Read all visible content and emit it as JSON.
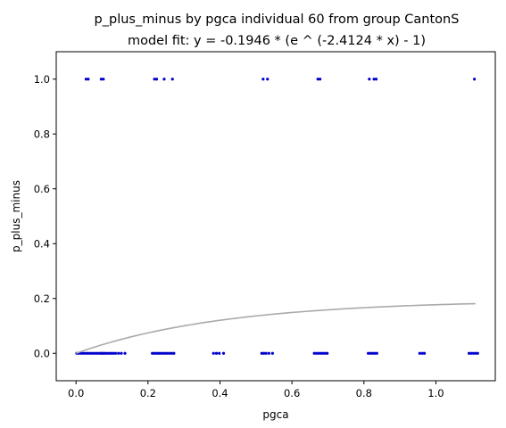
{
  "chart_data": {
    "type": "scatter",
    "title": "p_plus_minus by pgca individual 60 from group CantonS",
    "subtitle": "model fit: y = -0.1946 * (e ^ (-2.4124 * x) - 1)",
    "xlabel": "pgca",
    "ylabel": "p_plus_minus",
    "xlim": [
      -0.055,
      1.165
    ],
    "ylim": [
      -0.1,
      1.1
    ],
    "xticks": [
      0.0,
      0.2,
      0.4,
      0.6,
      0.8,
      1.0
    ],
    "xtick_labels": [
      "0.0",
      "0.2",
      "0.4",
      "0.6",
      "0.8",
      "1.0"
    ],
    "yticks": [
      0.0,
      0.2,
      0.4,
      0.6,
      0.8,
      1.0
    ],
    "ytick_labels": [
      "0.0",
      "0.2",
      "0.4",
      "0.6",
      "0.8",
      "1.0"
    ],
    "grid": false,
    "series": [
      {
        "kind": "scatter",
        "color": "#0000cc",
        "points": [
          [
            0.028,
            1
          ],
          [
            0.034,
            1
          ],
          [
            0.07,
            1
          ],
          [
            0.076,
            1
          ],
          [
            0.218,
            1
          ],
          [
            0.224,
            1
          ],
          [
            0.245,
            1
          ],
          [
            0.268,
            1
          ],
          [
            0.52,
            1
          ],
          [
            0.532,
            1
          ],
          [
            0.672,
            1
          ],
          [
            0.678,
            1
          ],
          [
            0.815,
            1
          ],
          [
            0.828,
            1
          ],
          [
            0.834,
            1
          ],
          [
            1.107,
            1
          ],
          [
            0.002,
            0
          ],
          [
            0.008,
            0
          ],
          [
            0.014,
            0
          ],
          [
            0.02,
            0
          ],
          [
            0.026,
            0
          ],
          [
            0.032,
            0
          ],
          [
            0.038,
            0
          ],
          [
            0.044,
            0
          ],
          [
            0.05,
            0
          ],
          [
            0.056,
            0
          ],
          [
            0.062,
            0
          ],
          [
            0.068,
            0
          ],
          [
            0.072,
            0
          ],
          [
            0.076,
            0
          ],
          [
            0.08,
            0
          ],
          [
            0.086,
            0
          ],
          [
            0.092,
            0
          ],
          [
            0.098,
            0
          ],
          [
            0.104,
            0
          ],
          [
            0.11,
            0
          ],
          [
            0.118,
            0
          ],
          [
            0.126,
            0
          ],
          [
            0.136,
            0
          ],
          [
            0.212,
            0
          ],
          [
            0.218,
            0
          ],
          [
            0.224,
            0
          ],
          [
            0.23,
            0
          ],
          [
            0.236,
            0
          ],
          [
            0.242,
            0
          ],
          [
            0.248,
            0
          ],
          [
            0.254,
            0
          ],
          [
            0.26,
            0
          ],
          [
            0.266,
            0
          ],
          [
            0.272,
            0
          ],
          [
            0.382,
            0
          ],
          [
            0.39,
            0
          ],
          [
            0.398,
            0
          ],
          [
            0.41,
            0
          ],
          [
            0.516,
            0
          ],
          [
            0.522,
            0
          ],
          [
            0.528,
            0
          ],
          [
            0.536,
            0
          ],
          [
            0.546,
            0
          ],
          [
            0.662,
            0
          ],
          [
            0.668,
            0
          ],
          [
            0.674,
            0
          ],
          [
            0.68,
            0
          ],
          [
            0.686,
            0
          ],
          [
            0.692,
            0
          ],
          [
            0.698,
            0
          ],
          [
            0.812,
            0
          ],
          [
            0.818,
            0
          ],
          [
            0.824,
            0
          ],
          [
            0.83,
            0
          ],
          [
            0.836,
            0
          ],
          [
            0.955,
            0
          ],
          [
            0.962,
            0
          ],
          [
            0.968,
            0
          ],
          [
            1.092,
            0
          ],
          [
            1.098,
            0
          ],
          [
            1.104,
            0
          ],
          [
            1.11,
            0
          ],
          [
            1.116,
            0
          ]
        ]
      },
      {
        "kind": "line",
        "color": "#aaaaaa",
        "model": {
          "a": -0.1946,
          "b": -2.4124
        },
        "x_range": [
          0.0,
          1.11
        ]
      }
    ]
  }
}
